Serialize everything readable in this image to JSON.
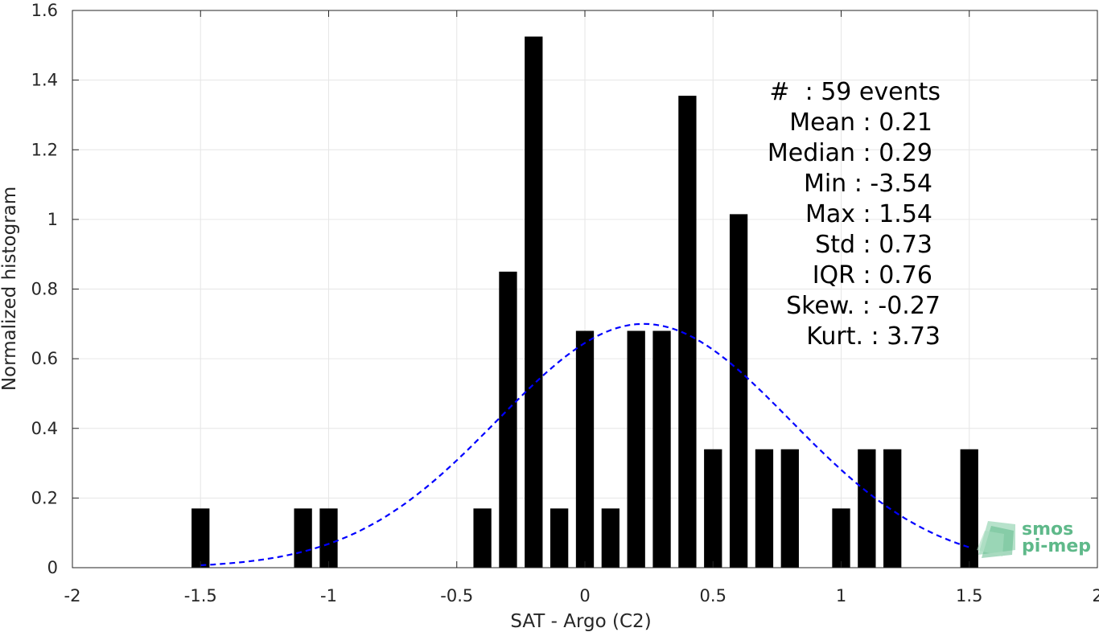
{
  "chart_data": {
    "type": "bar",
    "xlabel": "SAT - Argo (C2)",
    "ylabel": "Normalized histogram",
    "xlim": [
      -2,
      2
    ],
    "ylim": [
      0,
      1.6
    ],
    "bin_width": 0.1,
    "xticks": [
      -2,
      -1.5,
      -1,
      -0.5,
      0,
      0.5,
      1,
      1.5,
      2
    ],
    "xtick_labels": [
      "-2",
      "-1.5",
      "-1",
      "-0.5",
      "0",
      "0.5",
      "1",
      "1.5",
      "2"
    ],
    "yticks": [
      0,
      0.2,
      0.4,
      0.6,
      0.8,
      1,
      1.2,
      1.4,
      1.6
    ],
    "ytick_labels": [
      "0",
      "0.2",
      "0.4",
      "0.6",
      "0.8",
      "1",
      "1.2",
      "1.4",
      "1.6"
    ],
    "grid": true,
    "bar_color": "#000000",
    "bins": [
      {
        "x": -1.5,
        "y": 0.17
      },
      {
        "x": -1.1,
        "y": 0.17
      },
      {
        "x": -1.0,
        "y": 0.17
      },
      {
        "x": -0.4,
        "y": 0.17
      },
      {
        "x": -0.3,
        "y": 0.85
      },
      {
        "x": -0.2,
        "y": 1.525
      },
      {
        "x": -0.1,
        "y": 0.17
      },
      {
        "x": 0.0,
        "y": 0.68
      },
      {
        "x": 0.1,
        "y": 0.17
      },
      {
        "x": 0.2,
        "y": 0.68
      },
      {
        "x": 0.3,
        "y": 0.68
      },
      {
        "x": 0.4,
        "y": 1.355
      },
      {
        "x": 0.5,
        "y": 0.34
      },
      {
        "x": 0.6,
        "y": 1.015
      },
      {
        "x": 0.7,
        "y": 0.34
      },
      {
        "x": 0.8,
        "y": 0.34
      },
      {
        "x": 1.0,
        "y": 0.17
      },
      {
        "x": 1.1,
        "y": 0.34
      },
      {
        "x": 1.2,
        "y": 0.34
      },
      {
        "x": 1.5,
        "y": 0.34
      }
    ],
    "fit_curve": {
      "type": "normal",
      "mean": 0.23,
      "std": 0.57,
      "peak": 0.7,
      "x_range": [
        -1.5,
        1.5
      ],
      "color": "#0000ff",
      "style": "dashed"
    },
    "stats_box": {
      "placement": "top-right",
      "lines": [
        "#  : 59 events",
        "Mean : 0.21",
        "Median : 0.29",
        "Min : -3.54",
        "Max : 1.54",
        "Std : 0.73",
        "IQR : 0.76",
        "Skew. : -0.27",
        "Kurt. : 3.73"
      ]
    },
    "logo": {
      "lines": [
        "smos",
        "pi-mep"
      ],
      "color": "#5fb98a"
    }
  }
}
